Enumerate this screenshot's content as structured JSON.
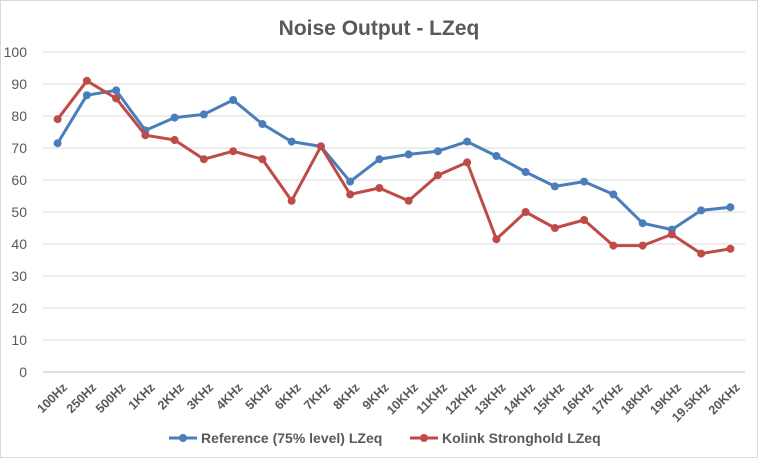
{
  "chart_data": {
    "type": "line",
    "title": "Noise Output  - LZeq",
    "xlabel": "",
    "ylabel": "",
    "ylim": [
      0,
      100
    ],
    "yticks": [
      0,
      10,
      20,
      30,
      40,
      50,
      60,
      70,
      80,
      90,
      100
    ],
    "grid": true,
    "legend_position": "bottom",
    "categories": [
      "100Hz",
      "250Hz",
      "500Hz",
      "1KHz",
      "2KHz",
      "3KHz",
      "4KHz",
      "5KHz",
      "6KHz",
      "7KHz",
      "8KHz",
      "9KHz",
      "10KHz",
      "11KHz",
      "12KHz",
      "13KHz",
      "14KHz",
      "15KHz",
      "16KHz",
      "17KHz",
      "18KHz",
      "19KHz",
      "19.5KHz",
      "20KHz"
    ],
    "series": [
      {
        "name": "Reference (75% level) LZeq",
        "color": "#4a7ebb",
        "values": [
          71.5,
          86.5,
          88,
          75.5,
          79.5,
          80.5,
          85,
          77.5,
          72,
          70.5,
          59.5,
          66.5,
          68,
          69,
          72,
          67.5,
          62.5,
          58,
          59.5,
          55.5,
          46.5,
          44.5,
          50.5,
          51.5
        ]
      },
      {
        "name": "Kolink Stronghold LZeq",
        "color": "#be4b48",
        "values": [
          79,
          91,
          85.5,
          74,
          72.5,
          66.5,
          69,
          66.5,
          53.5,
          70.5,
          55.5,
          57.5,
          53.5,
          61.5,
          65.5,
          41.5,
          50,
          45,
          47.5,
          39.5,
          39.5,
          43,
          37,
          38.5
        ]
      }
    ]
  }
}
